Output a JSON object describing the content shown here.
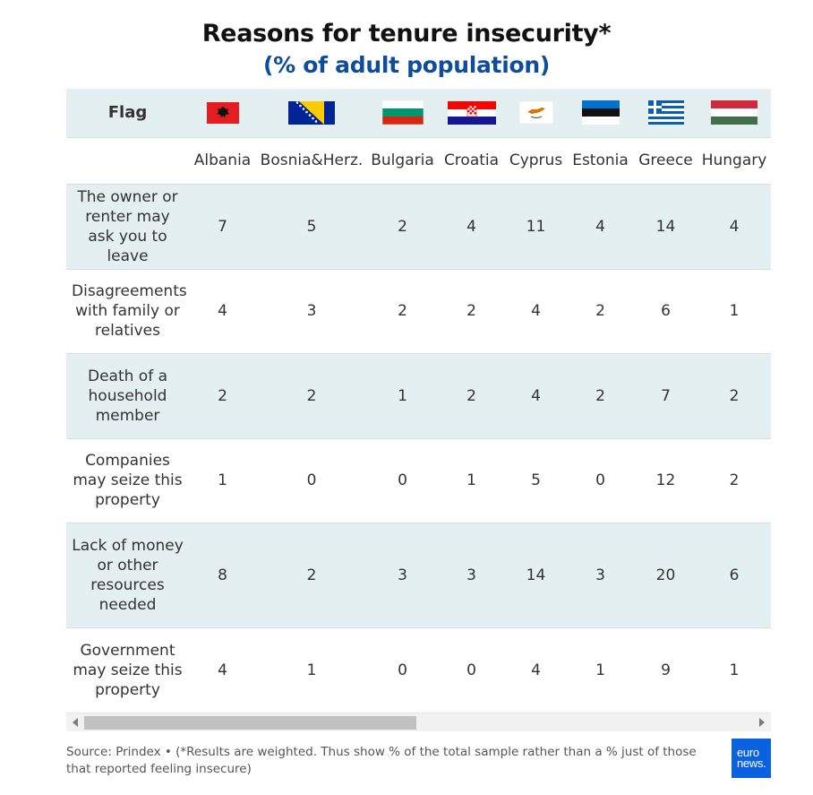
{
  "title": "Reasons for tenure insecurity*",
  "subtitle": "(% of adult population)",
  "chart_data": {
    "type": "table",
    "title": "Reasons for tenure insecurity*",
    "subtitle": "(% of adult population)",
    "header_label": "Flag",
    "columns": [
      "Albania",
      "Bosnia&Herz.",
      "Bulgaria",
      "Croatia",
      "Cyprus",
      "Estonia",
      "Greece",
      "Hungary"
    ],
    "flag_icons": [
      "albania-flag-icon",
      "bosnia-herzegovina-flag-icon",
      "bulgaria-flag-icon",
      "croatia-flag-icon",
      "cyprus-flag-icon",
      "estonia-flag-icon",
      "greece-flag-icon",
      "hungary-flag-icon"
    ],
    "rows": [
      {
        "label": "The owner or renter may ask you to leave",
        "values": [
          7,
          5,
          2,
          4,
          11,
          4,
          14,
          4
        ]
      },
      {
        "label": "Disagreements with family or relatives",
        "values": [
          4,
          3,
          2,
          2,
          4,
          2,
          6,
          1
        ]
      },
      {
        "label": "Death of a household member",
        "values": [
          2,
          2,
          1,
          2,
          4,
          2,
          7,
          2
        ]
      },
      {
        "label": "Companies may seize this property",
        "values": [
          1,
          0,
          0,
          1,
          5,
          0,
          12,
          2
        ]
      },
      {
        "label": "Lack of money or other resources needed",
        "values": [
          8,
          2,
          3,
          3,
          14,
          3,
          20,
          6
        ]
      },
      {
        "label": "Government may seize this property",
        "values": [
          4,
          1,
          0,
          0,
          4,
          1,
          9,
          1
        ]
      }
    ]
  },
  "colors": {
    "subtitle": "#0f4c9a",
    "row_shade": "#e3eff0",
    "logo_bg": "#0a62e0"
  },
  "footer": {
    "source": "Source: Prindex • (*Results are weighted. Thus show % of the total sample rather than a % just of those that reported feeling insecure)"
  },
  "logo": {
    "line1": "euro",
    "line2": "news."
  }
}
